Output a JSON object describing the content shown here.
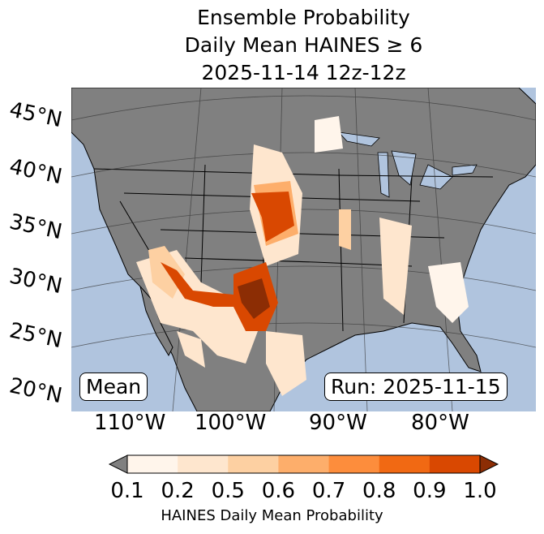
{
  "title": {
    "line1": "Ensemble Probability",
    "line2": "Daily Mean HAINES ≥ 6",
    "line3": "2025-11-14 12z-12z"
  },
  "map": {
    "ocean_color": "#b0c4de",
    "land_color": "#808080",
    "lat_labels": [
      "45°N",
      "40°N",
      "35°N",
      "30°N",
      "25°N",
      "20°N"
    ],
    "lon_labels": [
      "110°W",
      "100°W",
      "90°W",
      "80°W"
    ],
    "mean_label": "Mean",
    "run_label": "Run: 2025-11-15"
  },
  "colorbar": {
    "ticks": [
      "0.1",
      "0.2",
      "0.5",
      "0.6",
      "0.7",
      "0.8",
      "0.9",
      "1.0"
    ],
    "colors": [
      "#fff5eb",
      "#fee6ce",
      "#fdd0a2",
      "#fdae6b",
      "#fd8d3c",
      "#f16913",
      "#d94801"
    ],
    "under_color": "#808080",
    "over_color": "#8c2d04",
    "label": "HAINES Daily Mean Probability"
  }
}
